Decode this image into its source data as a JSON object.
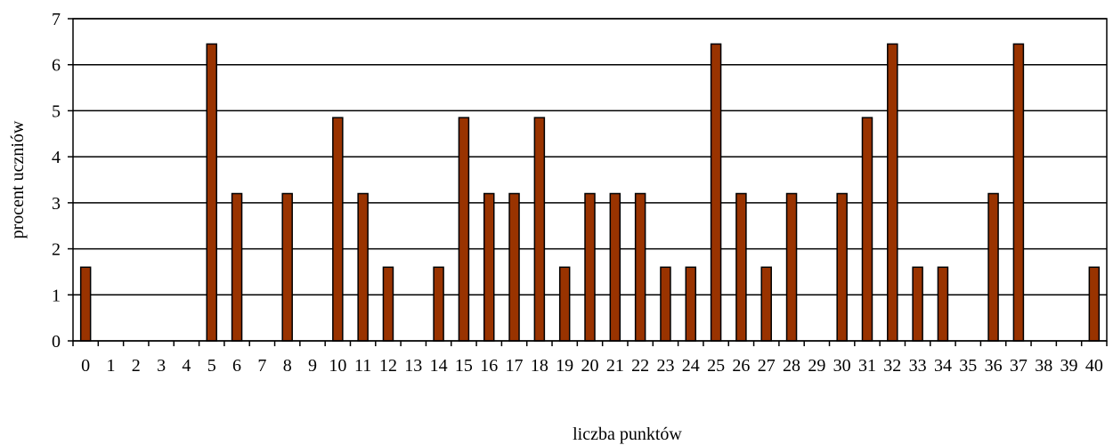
{
  "chart_data": {
    "type": "bar",
    "title": "",
    "xlabel": "liczba punktów",
    "ylabel": "procent uczniów",
    "ylim": [
      0,
      7
    ],
    "yticks": [
      0,
      1,
      2,
      3,
      4,
      5,
      6,
      7
    ],
    "grid": true,
    "legend": "none",
    "bar_color": "#993300",
    "categories": [
      "0",
      "1",
      "2",
      "3",
      "4",
      "5",
      "6",
      "7",
      "8",
      "9",
      "10",
      "11",
      "12",
      "13",
      "14",
      "15",
      "16",
      "17",
      "18",
      "19",
      "20",
      "21",
      "22",
      "23",
      "24",
      "25",
      "26",
      "27",
      "28",
      "29",
      "30",
      "31",
      "32",
      "33",
      "34",
      "35",
      "36",
      "37",
      "38",
      "39",
      "40"
    ],
    "values": [
      1.6,
      0,
      0,
      0,
      0,
      6.45,
      3.2,
      0,
      3.2,
      0,
      4.85,
      3.2,
      1.6,
      0,
      1.6,
      4.85,
      3.2,
      3.2,
      4.85,
      1.6,
      3.2,
      3.2,
      3.2,
      1.6,
      1.6,
      6.45,
      3.2,
      1.6,
      3.2,
      0,
      3.2,
      4.85,
      6.45,
      1.6,
      1.6,
      0,
      3.2,
      6.45,
      0,
      0,
      1.6
    ]
  }
}
